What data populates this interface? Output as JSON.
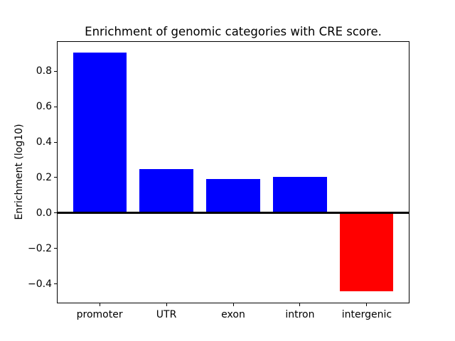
{
  "chart_data": {
    "type": "bar",
    "title": "Enrichment of genomic categories with CRE score.",
    "xlabel": "",
    "ylabel": "Enrichment (log10)",
    "categories": [
      "promoter",
      "UTR",
      "exon",
      "intron",
      "intergenic"
    ],
    "values": [
      0.905,
      0.25,
      0.19,
      0.205,
      -0.44
    ],
    "bar_colors": [
      "#0000ff",
      "#0000ff",
      "#0000ff",
      "#0000ff",
      "#ff0000"
    ],
    "positive_color": "#0000ff",
    "negative_color": "#ff0000",
    "yticks": [
      -0.4,
      -0.2,
      0.0,
      0.2,
      0.4,
      0.6,
      0.8
    ],
    "ylim": [
      -0.51,
      0.97
    ],
    "zero_line": true,
    "grid": false,
    "legend": null,
    "frame_color": "#000000",
    "background_color": "#ffffff"
  }
}
